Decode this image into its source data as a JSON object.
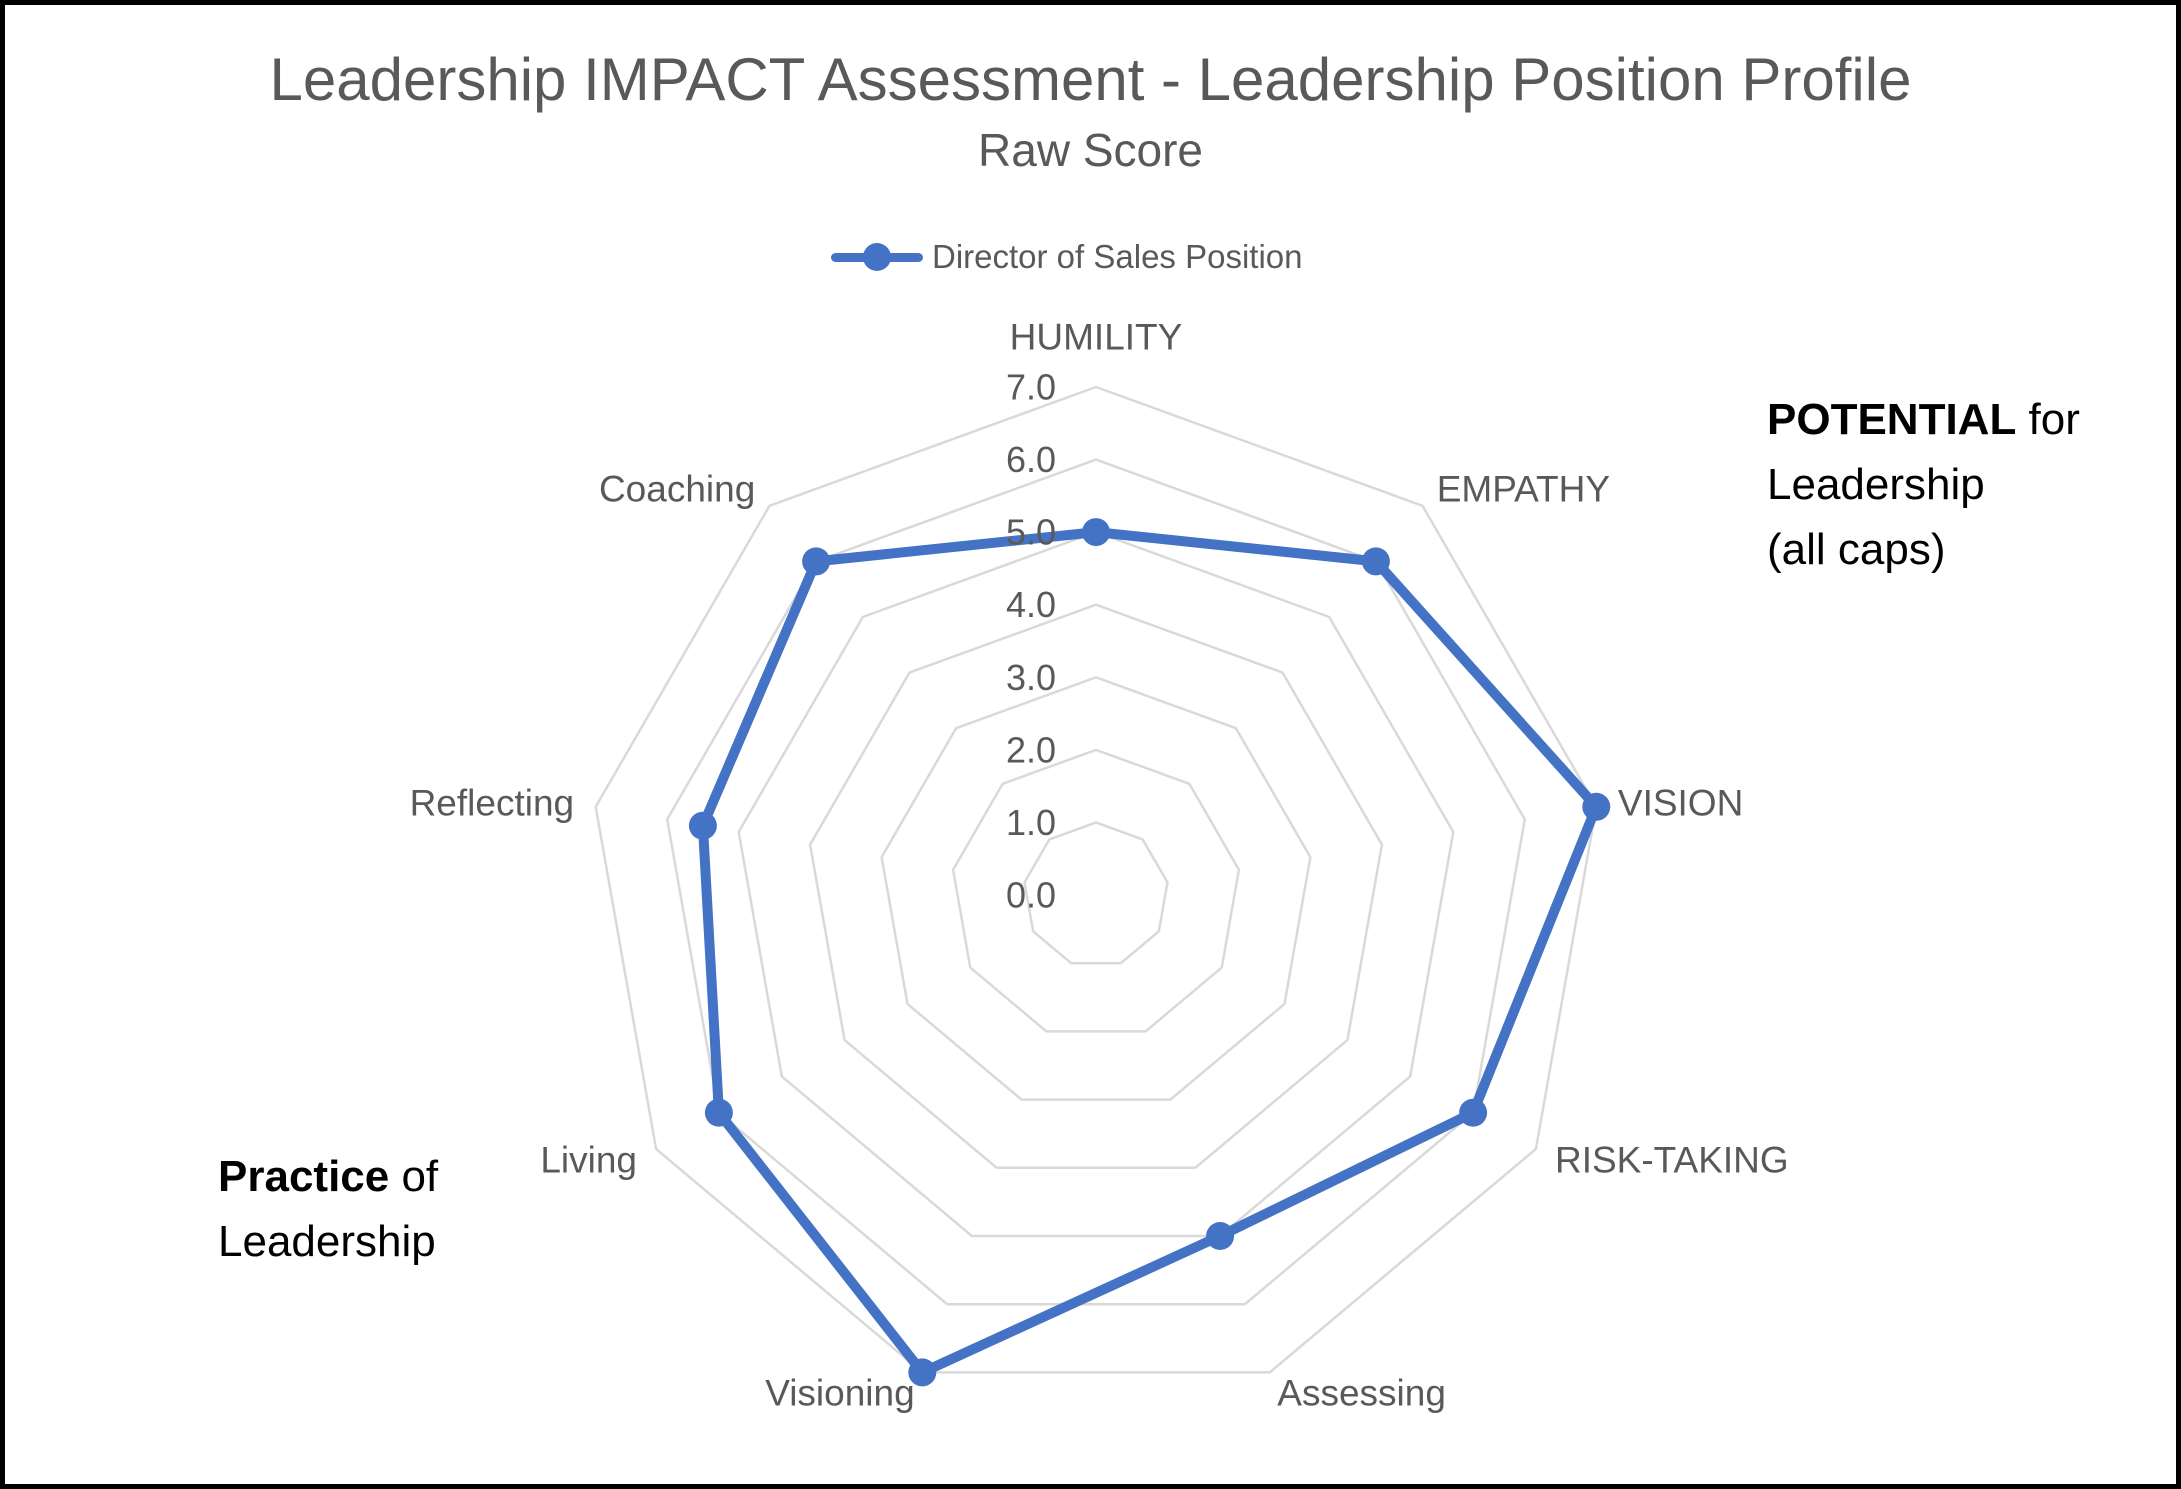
{
  "page": {
    "title": "Leadership IMPACT Assessment - Leadership Position Profile",
    "subtitle": "Raw Score"
  },
  "legend": {
    "series_label": "Director of Sales Position"
  },
  "annotations": {
    "right": {
      "line1_bold": "POTENTIAL",
      "line1_rest": " for",
      "line2": "Leadership",
      "line3": "(all caps)"
    },
    "left": {
      "line1_bold": "Practice",
      "line1_rest": " of",
      "line2": "Leadership"
    }
  },
  "colors": {
    "series": "#4472C4",
    "grid": "#D9D9D9",
    "text": "#595959",
    "annotation": "#000000"
  },
  "chart_data": {
    "type": "radar",
    "title": "Leadership IMPACT Assessment - Leadership Position Profile",
    "subtitle": "Raw Score",
    "categories": [
      "HUMILITY",
      "EMPATHY",
      "VISION",
      "RISK-TAKING",
      "Assessing",
      "Visioning",
      "Living",
      "Reflecting",
      "Coaching"
    ],
    "series": [
      {
        "name": "Director of Sales Position",
        "values": [
          5.0,
          6.0,
          7.0,
          6.0,
          5.0,
          7.0,
          6.0,
          5.5,
          6.0
        ]
      }
    ],
    "axis": {
      "min": 0,
      "max": 7,
      "step": 1,
      "tick_labels": [
        "0.0",
        "1.0",
        "2.0",
        "3.0",
        "4.0",
        "5.0",
        "6.0",
        "7.0"
      ],
      "grid": true
    },
    "legend_position": "top"
  }
}
